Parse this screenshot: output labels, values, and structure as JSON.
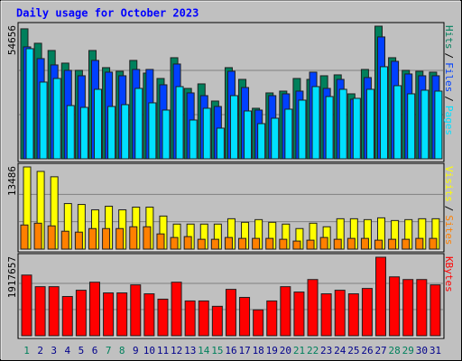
{
  "chart_data": [
    {
      "type": "bar",
      "title": "Daily usage for October 2023",
      "legend_separator": "/",
      "ylim": [
        0,
        54656
      ],
      "yticks": [
        54656
      ],
      "series": [
        {
          "name": "Hits",
          "color": "#00805c",
          "values": [
            53568,
            47616,
            44640,
            39432,
            36456,
            44640,
            37572,
            36084,
            40548,
            35340,
            33108,
            41664,
            29016,
            30876,
            23808,
            37572,
            32736,
            20832,
            27156,
            27900,
            33108,
            32736,
            34224,
            34596,
            26784,
            36828,
            54656,
            41664,
            36456,
            36084,
            35712
          ]
        },
        {
          "name": "Files",
          "color": "#0040ff",
          "values": [
            46128,
            41292,
            38688,
            36456,
            34224,
            40548,
            35712,
            34224,
            36828,
            36828,
            30504,
            39060,
            27156,
            26040,
            21576,
            36084,
            29388,
            20088,
            26040,
            26784,
            27900,
            35712,
            29016,
            32736,
            24552,
            33480,
            50220,
            40176,
            34968,
            34224,
            34224
          ]
        },
        {
          "name": "Pages",
          "color": "#00e0ff",
          "values": [
            45384,
            31620,
            33108,
            21948,
            21204,
            28644,
            21576,
            22320,
            29016,
            23064,
            20088,
            29760,
            15996,
            20832,
            12648,
            26040,
            19716,
            14508,
            16740,
            20460,
            24180,
            29760,
            25668,
            28644,
            24924,
            28644,
            37944,
            30132,
            26784,
            28272,
            27900
          ]
        }
      ]
    },
    {
      "type": "bar",
      "legend_separator": "/",
      "ylim": [
        0,
        13486
      ],
      "yticks": [
        13486
      ],
      "series": [
        {
          "name": "Visits",
          "color": "#ffff00",
          "values": [
            13486,
            12754,
            11875,
            7477,
            7330,
            6450,
            7037,
            6450,
            6890,
            6890,
            5424,
            4105,
            4105,
            4105,
            4105,
            4984,
            4398,
            4838,
            4398,
            4105,
            3372,
            4251,
            3665,
            4984,
            4984,
            4838,
            5131,
            4691,
            4838,
            4984,
            4984
          ]
        },
        {
          "name": "Sites",
          "color": "#ff8000",
          "values": [
            3958,
            4251,
            3812,
            2932,
            2785,
            3372,
            3372,
            3372,
            3665,
            3665,
            2492,
            1906,
            2052,
            1613,
            1613,
            1906,
            1759,
            1759,
            1759,
            1613,
            1319,
            1466,
            1906,
            1613,
            1759,
            1759,
            1466,
            1613,
            1613,
            1759,
            1759
          ]
        }
      ]
    },
    {
      "type": "bar",
      "ylim": [
        0,
        1917657
      ],
      "yticks": [
        1917657
      ],
      "categories": [
        "1",
        "2",
        "3",
        "4",
        "5",
        "6",
        "7",
        "8",
        "9",
        "10",
        "11",
        "12",
        "13",
        "14",
        "15",
        "16",
        "17",
        "18",
        "19",
        "20",
        "21",
        "22",
        "23",
        "24",
        "25",
        "26",
        "27",
        "28",
        "29",
        "30",
        "31"
      ],
      "category_colors": [
        "#00805c",
        "#00008b",
        "#00008b",
        "#00008b",
        "#00008b",
        "#00008b",
        "#00805c",
        "#00805c",
        "#00008b",
        "#00008b",
        "#00008b",
        "#00008b",
        "#00008b",
        "#00805c",
        "#00805c",
        "#00008b",
        "#00008b",
        "#00008b",
        "#00008b",
        "#00008b",
        "#00805c",
        "#00805c",
        "#00008b",
        "#00008b",
        "#00008b",
        "#00008b",
        "#00008b",
        "#00805c",
        "#00805c",
        "#00008b",
        "#00008b"
      ],
      "series": [
        {
          "name": "KBytes",
          "color": "#ff0000",
          "values": [
            1481856,
            1198560,
            1198560,
            958848,
            1111392,
            1307520,
            1046016,
            1046016,
            1242144,
            1024224,
            893472,
            1307520,
            849888,
            849888,
            719136,
            1133184,
            936576,
            631968,
            849888,
            1198560,
            1067808,
            1372896,
            1024224,
            1111392,
            1024224,
            1154976,
            1917657,
            1438272,
            1372896,
            1372896,
            1242144
          ]
        }
      ]
    }
  ]
}
